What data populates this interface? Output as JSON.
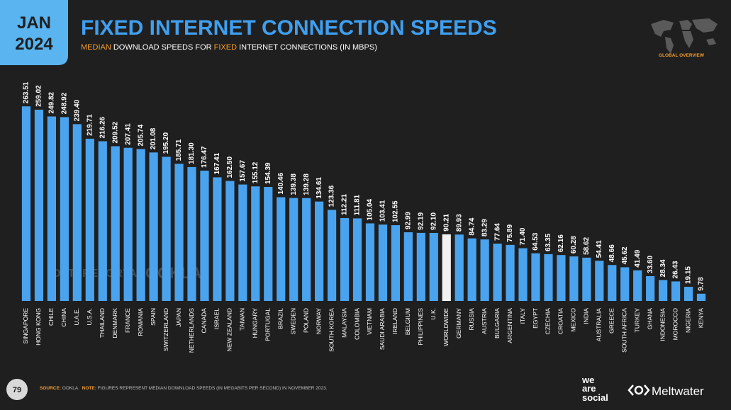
{
  "header": {
    "month": "JAN",
    "year": "2024"
  },
  "badge": "GLOBAL OVERVIEW",
  "page_number": "79",
  "footer": {
    "source_label": "SOURCE:",
    "source": "OOKLA.",
    "note_label": "NOTE:",
    "note": "FIGURES REPRESENT MEDIAN DOWNLOAD SPEEDS (IN MEGABITS PER SECOND) IN NOVEMBER 2023."
  },
  "brands": {
    "we_are_social": [
      "we",
      "are",
      "social"
    ],
    "meltwater": "Meltwater"
  },
  "watermarks": [
    "DATAREPORTAL",
    "OOKLA"
  ],
  "chart_data": {
    "type": "bar",
    "title": "FIXED INTERNET CONNECTION SPEEDS",
    "subtitle": [
      "MEDIAN",
      " DOWNLOAD SPEEDS FOR ",
      "FIXED",
      " INTERNET CONNECTIONS (IN MBPS)"
    ],
    "categories": [
      "SINGAPORE",
      "HONG KONG",
      "CHILE",
      "CHINA",
      "U.A.E.",
      "U.S.A.",
      "THAILAND",
      "DENMARK",
      "FRANCE",
      "ROMANIA",
      "SPAIN",
      "SWITZERLAND",
      "JAPAN",
      "NETHERLANDS",
      "CANADA",
      "ISRAEL",
      "NEW ZEALAND",
      "TAIWAN",
      "HUNGARY",
      "PORTUGAL",
      "BRAZIL",
      "SWEDEN",
      "POLAND",
      "NORWAY",
      "SOUTH KOREA",
      "MALAYSIA",
      "COLOMBIA",
      "VIETNAM",
      "SAUDI ARABIA",
      "IRELAND",
      "BELGIUM",
      "PHILIPPINES",
      "U.K.",
      "WORLDWIDE",
      "GERMANY",
      "RUSSIA",
      "AUSTRIA",
      "BULGARIA",
      "ARGENTINA",
      "ITALY",
      "EGYPT",
      "CZECHIA",
      "CROATIA",
      "MEXICO",
      "INDIA",
      "AUSTRALIA",
      "GREECE",
      "SOUTH AFRICA",
      "TURKEY",
      "GHANA",
      "INDONESIA",
      "MOROCCO",
      "NIGERIA",
      "KENYA"
    ],
    "values": [
      263.51,
      259.02,
      249.82,
      248.92,
      239.4,
      219.71,
      216.26,
      209.52,
      207.41,
      205.74,
      201.08,
      195.2,
      185.71,
      181.3,
      176.47,
      167.41,
      162.5,
      157.67,
      155.12,
      154.39,
      140.46,
      139.38,
      139.28,
      134.61,
      123.36,
      112.21,
      111.81,
      105.04,
      103.41,
      102.55,
      92.99,
      92.19,
      92.1,
      90.21,
      89.93,
      84.74,
      83.29,
      77.64,
      75.89,
      71.4,
      64.53,
      63.35,
      62.16,
      60.28,
      58.62,
      54.41,
      48.66,
      45.62,
      41.49,
      33.6,
      28.34,
      26.43,
      19.15,
      9.78
    ],
    "value_labels": [
      "263.51",
      "259.02",
      "249.82",
      "248.92",
      "239.40",
      "219.71",
      "216.26",
      "209.52",
      "207.41",
      "205.74",
      "201.08",
      "195.20",
      "185.71",
      "181.30",
      "176.47",
      "167.41",
      "162.50",
      "157.67",
      "155.12",
      "154.39",
      "140.46",
      "139.38",
      "139.28",
      "134.61",
      "123.36",
      "112.21",
      "111.81",
      "105.04",
      "103.41",
      "102.55",
      "92.99",
      "92.19",
      "92.10",
      "90.21",
      "89.93",
      "84.74",
      "83.29",
      "77.64",
      "75.89",
      "71.40",
      "64.53",
      "63.35",
      "62.16",
      "60.28",
      "58.62",
      "54.41",
      "48.66",
      "45.62",
      "41.49",
      "33.60",
      "28.34",
      "26.43",
      "19.15",
      "9.78"
    ],
    "color": "#4aa3ee",
    "highlight": "WORLDWIDE",
    "highlight_color": "#f2f2f2",
    "ylim": [
      0,
      280
    ],
    "grid": false
  }
}
